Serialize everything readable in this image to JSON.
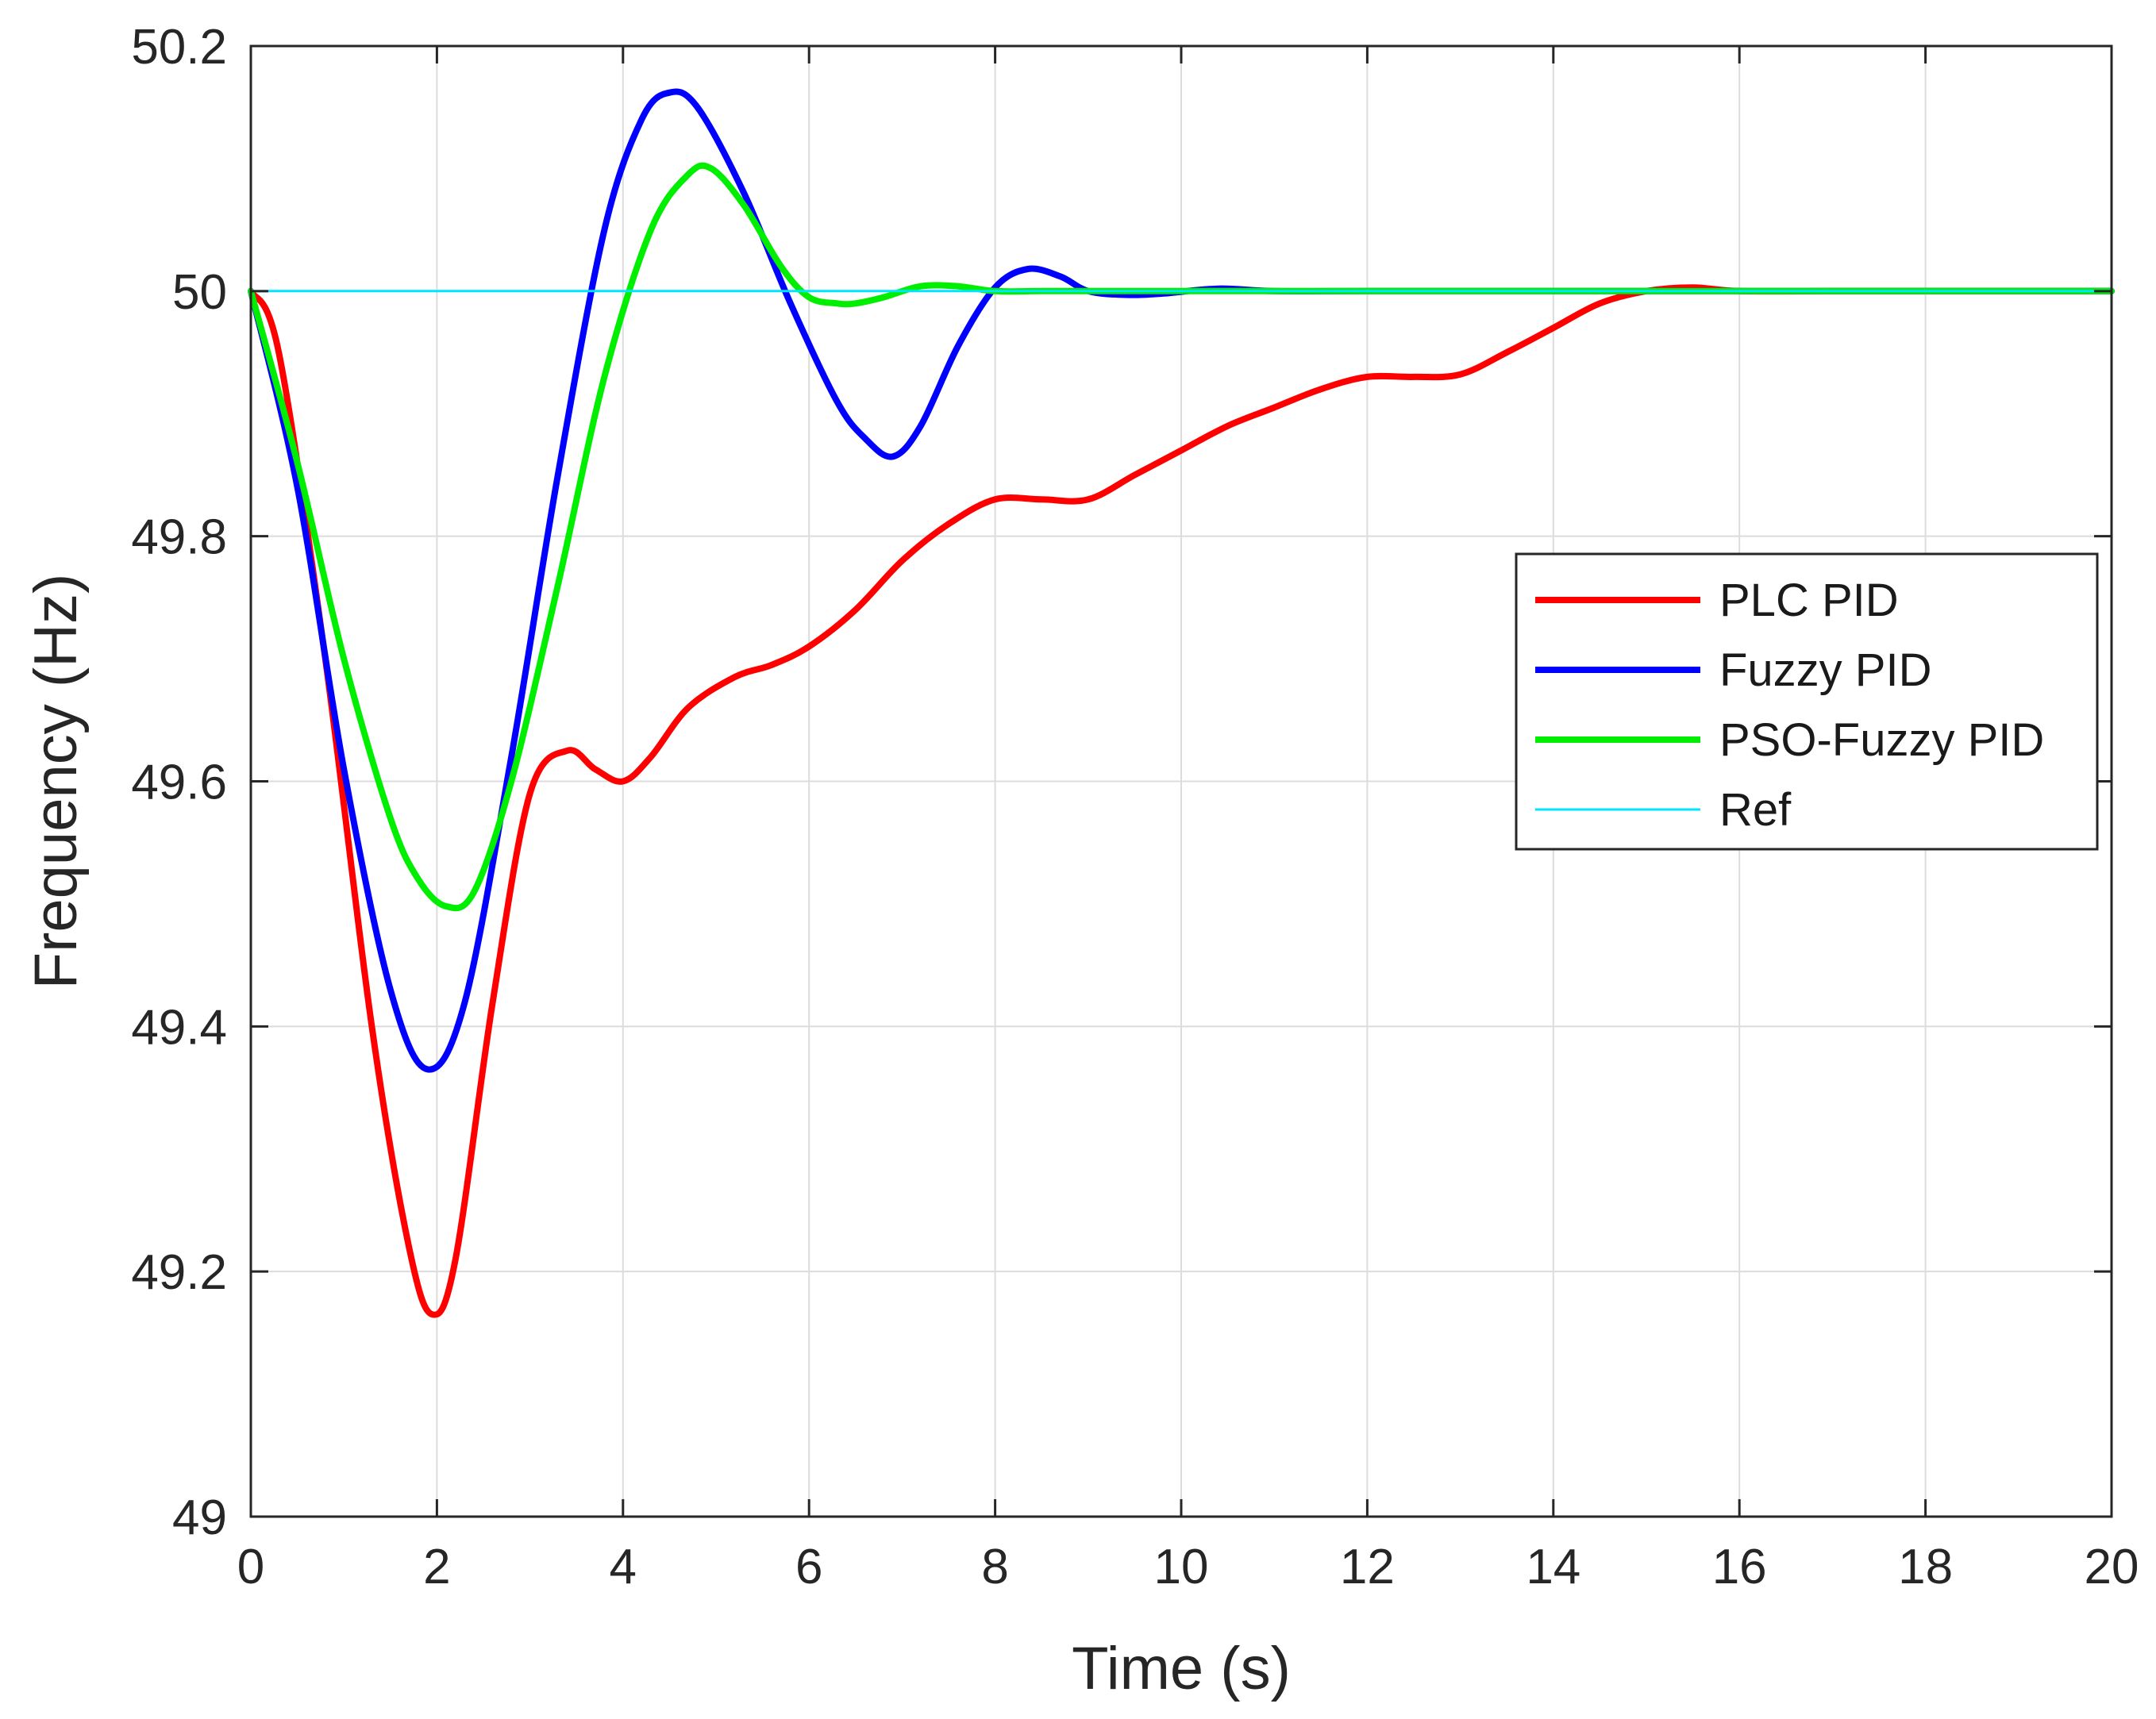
{
  "chart_data": {
    "type": "line",
    "title": "",
    "xlabel": "Time (s)",
    "ylabel": "Frequency (Hz)",
    "xlim": [
      0,
      20
    ],
    "ylim": [
      49,
      50.2
    ],
    "xticks": [
      0,
      2,
      4,
      6,
      8,
      10,
      12,
      14,
      16,
      18,
      20
    ],
    "yticks": [
      49,
      49.2,
      49.4,
      49.6,
      49.8,
      50,
      50.2
    ],
    "xtick_labels": [
      "0",
      "2",
      "4",
      "6",
      "8",
      "10",
      "12",
      "14",
      "16",
      "18",
      "20"
    ],
    "ytick_labels": [
      "49",
      "49.2",
      "49.4",
      "49.6",
      "49.8",
      "50",
      "50.2"
    ],
    "grid": true,
    "legend_position": "right",
    "series": [
      {
        "name": "PLC PID",
        "color": "#ff0000",
        "x": [
          0,
          0.3,
          0.8,
          1.3,
          1.7,
          1.95,
          2.2,
          2.6,
          3.0,
          3.4,
          3.7,
          4.0,
          4.3,
          4.7,
          5.2,
          5.6,
          6.0,
          6.5,
          7.0,
          7.5,
          8.0,
          8.5,
          9.0,
          9.5,
          10.0,
          10.5,
          11.0,
          11.5,
          12.0,
          12.5,
          13.0,
          13.5,
          14.0,
          14.5,
          15.0,
          15.5,
          16.0,
          17.0,
          18.0,
          19.0,
          20.0
        ],
        "values": [
          50.0,
          49.95,
          49.7,
          49.4,
          49.22,
          49.165,
          49.21,
          49.42,
          49.59,
          49.625,
          49.61,
          49.6,
          49.62,
          49.66,
          49.685,
          49.695,
          49.71,
          49.74,
          49.78,
          49.81,
          49.83,
          49.83,
          49.83,
          49.85,
          49.87,
          49.89,
          49.905,
          49.92,
          49.93,
          49.93,
          49.932,
          49.95,
          49.97,
          49.99,
          50.0,
          50.003,
          50.0,
          50.0,
          50.0,
          50.0,
          50.0
        ]
      },
      {
        "name": "Fuzzy PID",
        "color": "#0000ff",
        "x": [
          0,
          0.5,
          1.0,
          1.5,
          1.9,
          2.3,
          2.8,
          3.3,
          3.8,
          4.2,
          4.5,
          4.8,
          5.3,
          5.8,
          6.3,
          6.6,
          6.9,
          7.2,
          7.6,
          8.0,
          8.35,
          8.7,
          9.0,
          9.4,
          9.8,
          10.4,
          11.0,
          12.0,
          14.0,
          16.0,
          18.0,
          20.0
        ],
        "values": [
          50.0,
          49.84,
          49.61,
          49.43,
          49.365,
          49.42,
          49.62,
          49.85,
          50.05,
          50.14,
          50.162,
          50.15,
          50.08,
          49.99,
          49.91,
          49.88,
          49.865,
          49.89,
          49.955,
          50.003,
          50.018,
          50.012,
          50.0,
          49.997,
          49.998,
          50.002,
          50.0,
          50.0,
          50.0,
          50.0,
          50.0,
          50.0
        ]
      },
      {
        "name": "PSO-Fuzzy PID",
        "color": "#00ee00",
        "x": [
          0,
          0.5,
          1.0,
          1.5,
          1.8,
          2.1,
          2.4,
          2.8,
          3.3,
          3.8,
          4.3,
          4.7,
          4.95,
          5.3,
          5.7,
          6.0,
          6.3,
          6.5,
          6.8,
          7.2,
          7.6,
          8.0,
          8.5,
          9.0,
          10.0,
          12.0,
          14.0,
          16.0,
          18.0,
          20.0
        ],
        "values": [
          50.0,
          49.86,
          49.7,
          49.57,
          49.52,
          49.498,
          49.51,
          49.6,
          49.76,
          49.93,
          50.05,
          50.095,
          50.1,
          50.07,
          50.02,
          49.995,
          49.99,
          49.99,
          49.995,
          50.004,
          50.004,
          50.0,
          50.0,
          50.0,
          50.0,
          50.0,
          50.0,
          50.0,
          50.0,
          50.0
        ]
      },
      {
        "name": "Ref",
        "color": "#00e5ff",
        "x": [
          0,
          20
        ],
        "values": [
          50.0,
          50.0
        ]
      }
    ]
  }
}
